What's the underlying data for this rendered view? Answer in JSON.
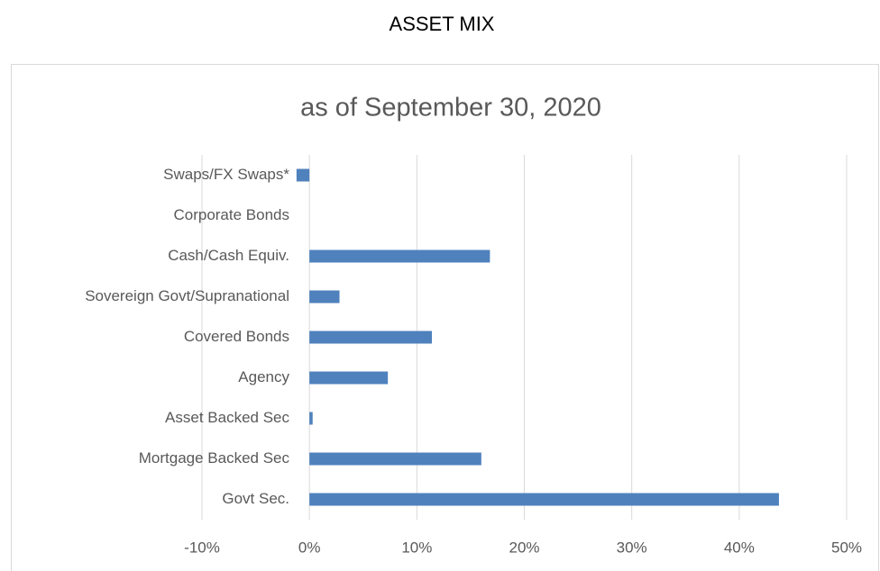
{
  "page_title": "ASSET MIX",
  "chart_data": {
    "type": "barh",
    "title": "as of September 30, 2020",
    "categories": [
      "Swaps/FX Swaps*",
      "Corporate Bonds",
      "Cash/Cash Equiv.",
      "Sovereign Govt/Supranational",
      "Covered Bonds",
      "Agency",
      "Asset Backed Sec",
      "Mortgage Backed Sec",
      "Govt Sec."
    ],
    "values": [
      -1.2,
      0,
      16.8,
      2.8,
      11.4,
      7.3,
      0.3,
      16.0,
      43.7
    ],
    "color": "#4f81bd",
    "xlim": [
      -10,
      50
    ],
    "xticks": [
      {
        "value": -10,
        "label": "-10%"
      },
      {
        "value": 0,
        "label": "0%"
      },
      {
        "value": 10,
        "label": "10%"
      },
      {
        "value": 20,
        "label": "20%"
      },
      {
        "value": 30,
        "label": "30%"
      },
      {
        "value": 40,
        "label": "40%"
      },
      {
        "value": 50,
        "label": "50%"
      }
    ],
    "grid": true
  }
}
